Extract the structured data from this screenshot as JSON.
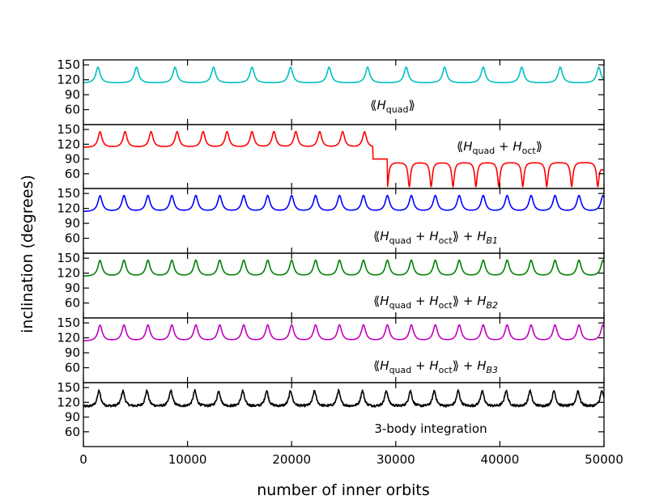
{
  "chart_data": {
    "type": "line",
    "xlabel": "number of inner orbits",
    "ylabel": "inclination (degrees)",
    "xlim": [
      0,
      50000
    ],
    "xticks": [
      0,
      10000,
      20000,
      30000,
      40000,
      50000
    ],
    "ylim": [
      30,
      160
    ],
    "yticks": [
      60,
      90,
      120,
      150
    ],
    "panels": [
      {
        "name": "quad",
        "label_parts": [
          {
            "t": "⟪"
          },
          {
            "t": "H",
            "i": true
          },
          {
            "t": "quad",
            "s": true
          },
          {
            "t": "⟫"
          }
        ],
        "color": "#00bfbf",
        "baseline": 113,
        "peak": 145,
        "start": 1400,
        "period": 3700,
        "xlim_sample": [
          0,
          50000
        ]
      },
      {
        "name": "quad-oct",
        "label_parts": [
          {
            "t": "⟪"
          },
          {
            "t": "H",
            "i": true
          },
          {
            "t": "quad",
            "s": true
          },
          {
            "t": " + "
          },
          {
            "t": "H",
            "i": true
          },
          {
            "t": "oct",
            "s": true
          },
          {
            "t": "⟫"
          }
        ],
        "color": "#ff0000",
        "prograde": {
          "baseline": 113,
          "peak": 145,
          "spike_x": [
            1600,
            4000,
            6500,
            9000,
            11500,
            13800,
            16200,
            18300,
            20400,
            22700,
            24900,
            27000
          ]
        },
        "flip_x": 27800,
        "mid_level": 90,
        "retrograde": {
          "baseline": 84,
          "trough": 34,
          "dip_x": [
            29200,
            31300,
            33400,
            35500,
            37700,
            39900,
            42200,
            44500,
            46900,
            49400
          ],
          "end_level": 69
        }
      },
      {
        "name": "quad-oct-hb1",
        "label_parts": [
          {
            "t": "⟪"
          },
          {
            "t": "H",
            "i": true
          },
          {
            "t": "quad",
            "s": true
          },
          {
            "t": " + "
          },
          {
            "t": "H",
            "i": true
          },
          {
            "t": "oct",
            "s": true
          },
          {
            "t": "⟫ + "
          },
          {
            "t": "H",
            "i": true
          },
          {
            "t": "B1",
            "s": true,
            "i": true
          }
        ],
        "color": "#0000ff",
        "baseline": 113,
        "peak": 145,
        "start": 1600,
        "period": 2300
      },
      {
        "name": "quad-oct-hb2",
        "label_parts": [
          {
            "t": "⟪"
          },
          {
            "t": "H",
            "i": true
          },
          {
            "t": "quad",
            "s": true
          },
          {
            "t": " + "
          },
          {
            "t": "H",
            "i": true
          },
          {
            "t": "oct",
            "s": true
          },
          {
            "t": "⟫ + "
          },
          {
            "t": "H",
            "i": true
          },
          {
            "t": "B2",
            "s": true,
            "i": true
          }
        ],
        "color": "#008000",
        "baseline": 113,
        "peak": 145,
        "start": 1600,
        "period": 2300
      },
      {
        "name": "quad-oct-hb3",
        "label_parts": [
          {
            "t": "⟪"
          },
          {
            "t": "H",
            "i": true
          },
          {
            "t": "quad",
            "s": true
          },
          {
            "t": " + "
          },
          {
            "t": "H",
            "i": true
          },
          {
            "t": "oct",
            "s": true
          },
          {
            "t": "⟫ + "
          },
          {
            "t": "H",
            "i": true
          },
          {
            "t": "B3",
            "s": true,
            "i": true
          }
        ],
        "color": "#bf00bf",
        "baseline": 113,
        "peak": 145,
        "start": 1600,
        "period": 2300
      },
      {
        "name": "three-body",
        "label_parts": [
          {
            "t": "3-body integration"
          }
        ],
        "color": "#000000",
        "baseline": 111,
        "peak": 143,
        "start": 1500,
        "period": 2300,
        "noisy": true
      }
    ]
  }
}
